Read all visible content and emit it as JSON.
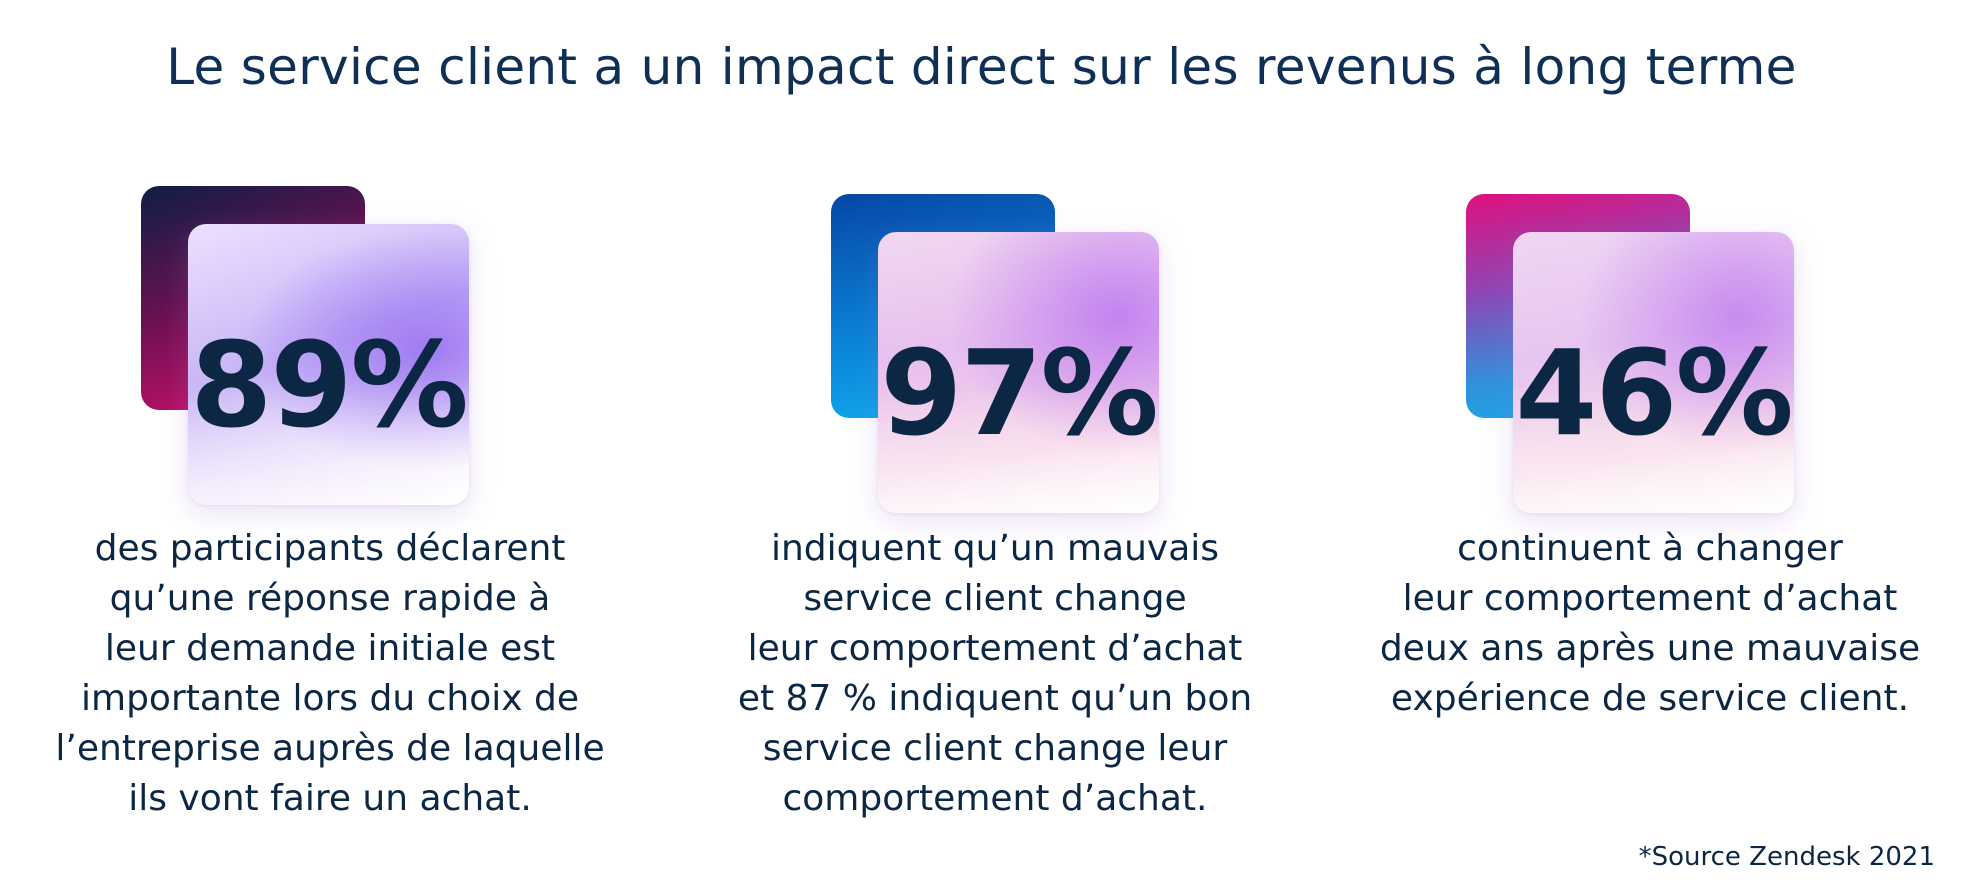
{
  "title": "Le service client a un impact direct sur les revenus à long terme",
  "stats": [
    {
      "value": "89%",
      "description": "des participants déclarent\nqu’une réponse rapide à\nleur demande initiale est\nimportante lors du choix de\nl’entreprise auprès de laquelle\nils vont faire un achat."
    },
    {
      "value": "97%",
      "description": "indiquent qu’un mauvais\nservice client change\nleur comportement d’achat\net 87 % indiquent qu’un bon\nservice client change leur\ncomportement d’achat."
    },
    {
      "value": "46%",
      "description": "continuent à changer\nleur comportement d’achat\ndeux ans après une mauvaise\nexpérience de service client."
    }
  ],
  "source": "*Source Zendesk 2021",
  "colors": {
    "text": "#0c2744",
    "title": "#0f2f57",
    "card1_back": [
      "#0d1e45",
      "#e8106f"
    ],
    "card2_back": [
      "#0747a6",
      "#11b0f0"
    ],
    "card3_back": [
      "#e0107e",
      "#12adee"
    ]
  }
}
